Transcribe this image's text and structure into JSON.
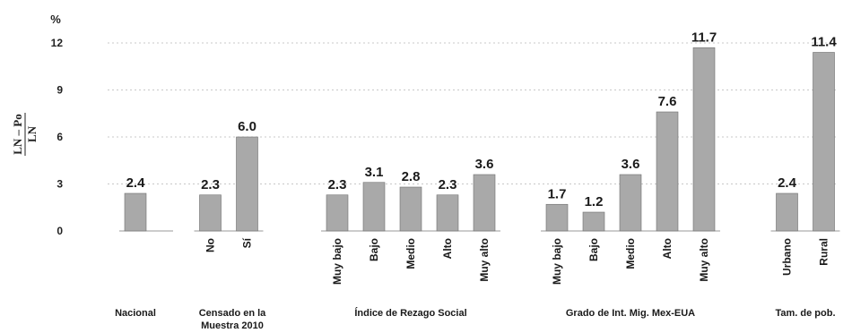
{
  "chart_data": {
    "type": "bar",
    "y_unit": "%",
    "y_label_numerator": "LN – Po",
    "y_label_denominator": "LN",
    "ylim": [
      0,
      12
    ],
    "yticks": [
      0,
      3,
      6,
      9,
      12
    ],
    "grid": true,
    "groups": [
      {
        "name": "Nacional",
        "categories": [
          ""
        ],
        "values": [
          2.4
        ],
        "labels": [
          "2.4"
        ]
      },
      {
        "name": "Censado en la Muestra 2010",
        "categories": [
          "No",
          "Sí"
        ],
        "values": [
          2.3,
          6.0
        ],
        "labels": [
          "2.3",
          "6.0"
        ]
      },
      {
        "name": "Índice de Rezago Social",
        "categories": [
          "Muy bajo",
          "Bajo",
          "Medio",
          "Alto",
          "Muy alto"
        ],
        "values": [
          2.3,
          3.1,
          2.8,
          2.3,
          3.6
        ],
        "labels": [
          "2.3",
          "3.1",
          "2.8",
          "2.3",
          "3.6"
        ]
      },
      {
        "name": "Grado de Int. Mig. Mex-EUA",
        "categories": [
          "Muy bajo",
          "Bajo",
          "Medio",
          "Alto",
          "Muy alto"
        ],
        "values": [
          1.7,
          1.2,
          3.6,
          7.6,
          11.7
        ],
        "labels": [
          "1.7",
          "1.2",
          "3.6",
          "7.6",
          "11.7"
        ]
      },
      {
        "name": "Tam. de pob.",
        "categories": [
          "Urbano",
          "Rural"
        ],
        "values": [
          2.4,
          11.4
        ],
        "labels": [
          "2.4",
          "11.4"
        ]
      }
    ]
  }
}
